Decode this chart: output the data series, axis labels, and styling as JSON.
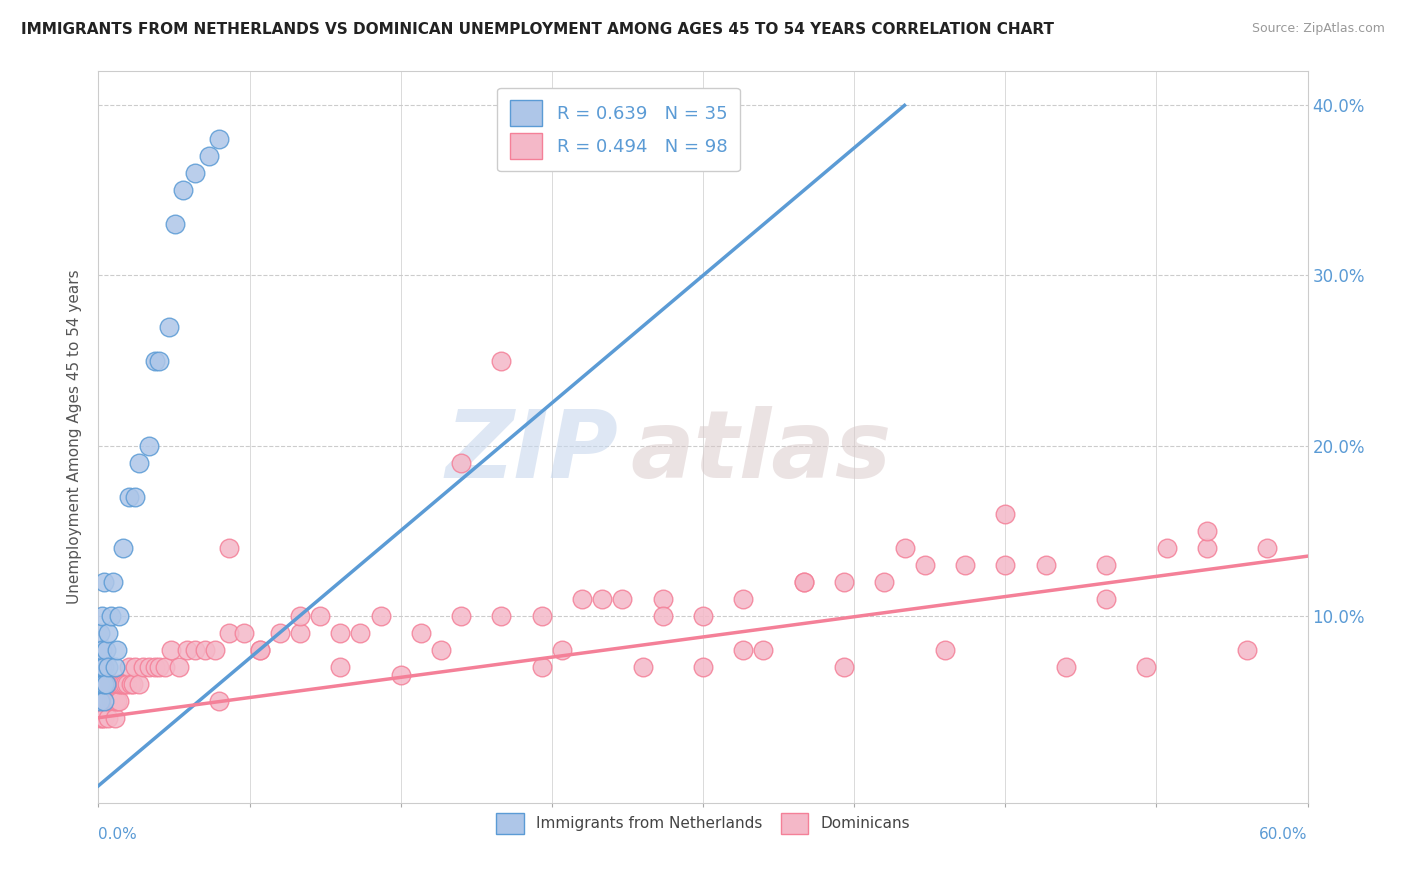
{
  "title": "IMMIGRANTS FROM NETHERLANDS VS DOMINICAN UNEMPLOYMENT AMONG AGES 45 TO 54 YEARS CORRELATION CHART",
  "source": "Source: ZipAtlas.com",
  "ylabel": "Unemployment Among Ages 45 to 54 years",
  "xlim": [
    0.0,
    0.6
  ],
  "ylim": [
    -0.01,
    0.42
  ],
  "legend_entries": [
    {
      "label": "R = 0.639   N = 35",
      "facecolor": "#aec6e8",
      "edgecolor": "#5b9bd5"
    },
    {
      "label": "R = 0.494   N = 98",
      "facecolor": "#f4b8c8",
      "edgecolor": "#f48098"
    }
  ],
  "legend_labels_bottom": [
    "Immigrants from Netherlands",
    "Dominicans"
  ],
  "blue_color": "#5b9bd5",
  "pink_color": "#f48098",
  "blue_fill": "#aec6e8",
  "pink_fill": "#f4b8c8",
  "watermark_zip": "ZIP",
  "watermark_atlas": "atlas",
  "ytick_values": [
    0.0,
    0.1,
    0.2,
    0.3,
    0.4
  ],
  "ytick_labels": [
    "",
    "10.0%",
    "20.0%",
    "30.0%",
    "40.0%"
  ],
  "blue_trend_x": [
    0.0,
    0.4
  ],
  "blue_trend_y": [
    0.0,
    0.4
  ],
  "pink_trend_x": [
    0.0,
    0.6
  ],
  "pink_trend_y": [
    0.04,
    0.135
  ],
  "blue_scatter_x": [
    0.001,
    0.001,
    0.001,
    0.001,
    0.001,
    0.002,
    0.002,
    0.002,
    0.002,
    0.003,
    0.003,
    0.003,
    0.003,
    0.004,
    0.004,
    0.005,
    0.005,
    0.006,
    0.007,
    0.008,
    0.009,
    0.01,
    0.012,
    0.015,
    0.018,
    0.02,
    0.025,
    0.028,
    0.03,
    0.035,
    0.038,
    0.042,
    0.048,
    0.055,
    0.06
  ],
  "blue_scatter_y": [
    0.05,
    0.06,
    0.07,
    0.08,
    0.09,
    0.06,
    0.07,
    0.08,
    0.1,
    0.05,
    0.06,
    0.07,
    0.12,
    0.06,
    0.08,
    0.07,
    0.09,
    0.1,
    0.12,
    0.07,
    0.08,
    0.1,
    0.14,
    0.17,
    0.17,
    0.19,
    0.2,
    0.25,
    0.25,
    0.27,
    0.33,
    0.35,
    0.36,
    0.37,
    0.38
  ],
  "pink_scatter_x": [
    0.001,
    0.001,
    0.001,
    0.002,
    0.002,
    0.003,
    0.003,
    0.003,
    0.004,
    0.004,
    0.005,
    0.005,
    0.005,
    0.006,
    0.006,
    0.007,
    0.007,
    0.008,
    0.008,
    0.009,
    0.01,
    0.01,
    0.011,
    0.012,
    0.013,
    0.014,
    0.015,
    0.016,
    0.017,
    0.018,
    0.02,
    0.022,
    0.025,
    0.028,
    0.03,
    0.033,
    0.036,
    0.04,
    0.044,
    0.048,
    0.053,
    0.058,
    0.065,
    0.072,
    0.08,
    0.09,
    0.1,
    0.11,
    0.12,
    0.13,
    0.14,
    0.16,
    0.18,
    0.2,
    0.22,
    0.24,
    0.26,
    0.28,
    0.3,
    0.32,
    0.35,
    0.37,
    0.39,
    0.41,
    0.43,
    0.45,
    0.47,
    0.5,
    0.53,
    0.55,
    0.58,
    0.065,
    0.08,
    0.1,
    0.15,
    0.2,
    0.25,
    0.3,
    0.35,
    0.4,
    0.45,
    0.5,
    0.55,
    0.18,
    0.23,
    0.28,
    0.33,
    0.12,
    0.17,
    0.22,
    0.27,
    0.32,
    0.37,
    0.42,
    0.48,
    0.52,
    0.57,
    0.06
  ],
  "pink_scatter_y": [
    0.04,
    0.05,
    0.06,
    0.04,
    0.05,
    0.04,
    0.05,
    0.06,
    0.05,
    0.06,
    0.04,
    0.05,
    0.06,
    0.05,
    0.06,
    0.05,
    0.06,
    0.04,
    0.05,
    0.05,
    0.05,
    0.06,
    0.06,
    0.06,
    0.06,
    0.06,
    0.07,
    0.06,
    0.06,
    0.07,
    0.06,
    0.07,
    0.07,
    0.07,
    0.07,
    0.07,
    0.08,
    0.07,
    0.08,
    0.08,
    0.08,
    0.08,
    0.09,
    0.09,
    0.08,
    0.09,
    0.09,
    0.1,
    0.09,
    0.09,
    0.1,
    0.09,
    0.1,
    0.1,
    0.1,
    0.11,
    0.11,
    0.11,
    0.1,
    0.11,
    0.12,
    0.12,
    0.12,
    0.13,
    0.13,
    0.13,
    0.13,
    0.13,
    0.14,
    0.14,
    0.14,
    0.14,
    0.08,
    0.1,
    0.065,
    0.25,
    0.11,
    0.07,
    0.12,
    0.14,
    0.16,
    0.11,
    0.15,
    0.19,
    0.08,
    0.1,
    0.08,
    0.07,
    0.08,
    0.07,
    0.07,
    0.08,
    0.07,
    0.08,
    0.07,
    0.07,
    0.08,
    0.05
  ]
}
